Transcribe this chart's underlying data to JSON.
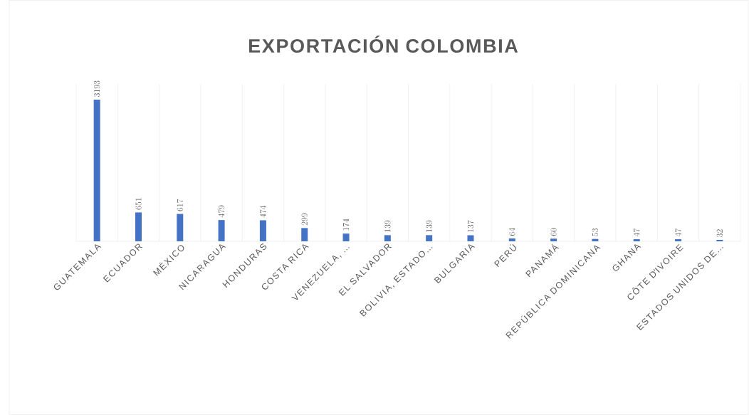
{
  "chart_data": {
    "type": "bar",
    "title": "EXPORTACIÓN COLOMBIA",
    "categories": [
      "GUATEMALA",
      "ECUADOR",
      "MÉXICO",
      "NICARAGUA",
      "HONDURAS",
      "COSTA RICA",
      "VENEZUELA, …",
      "EL SALVADOR",
      "BOLIVIA, ESTADO…",
      "BULGARIA",
      "PERÚ",
      "PANAMÁ",
      "REPÚBLICA DOMINICANA",
      "GHANA",
      "CÔTE D'IVOIRE",
      "ESTADOS UNIDOS DE…"
    ],
    "values": [
      3193,
      651,
      617,
      479,
      474,
      299,
      174,
      139,
      139,
      137,
      64,
      60,
      53,
      47,
      47,
      32
    ],
    "color": "#4472c4",
    "data_labels": true,
    "grid": "x"
  }
}
